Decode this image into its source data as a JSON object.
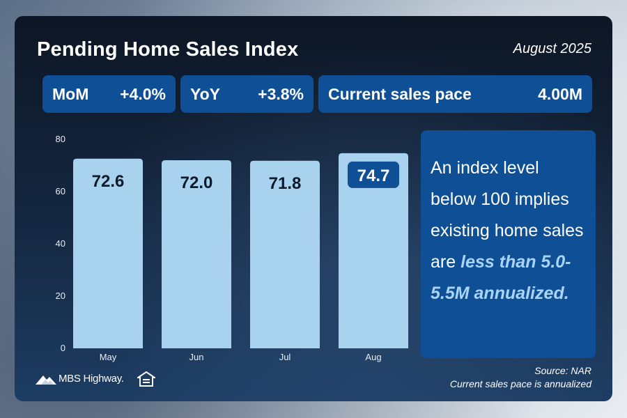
{
  "header": {
    "title": "Pending Home Sales Index",
    "date": "August 2025"
  },
  "stats": {
    "mom_label": "MoM",
    "mom_value": "+4.0%",
    "yoy_label": "YoY",
    "yoy_value": "+3.8%",
    "pace_label": "Current sales pace",
    "pace_value": "4.00M"
  },
  "chart_data": {
    "type": "bar",
    "categories": [
      "May",
      "Jun",
      "Jul",
      "Aug"
    ],
    "values": [
      72.6,
      72.0,
      71.8,
      74.7
    ],
    "value_labels": [
      "72.6",
      "72.0",
      "71.8",
      "74.7"
    ],
    "highlight_index": 3,
    "ylim": [
      0,
      80
    ],
    "yticks": [
      "0",
      "20",
      "40",
      "60",
      "80"
    ],
    "ytick_values": [
      0,
      20,
      40,
      60,
      80
    ],
    "grid": false,
    "bar_color": "#a9d2ee",
    "highlight_color": "#0f4f96"
  },
  "note": {
    "text_plain": "An index level below 100 implies existing home sales are ",
    "text_emphasis": "less than 5.0-5.5M annualized."
  },
  "footer": {
    "source": "Source: NAR",
    "footnote": "Current sales pace is annualized",
    "logo_text": "MBS Highway."
  },
  "colors": {
    "accent_blue": "#0f4f96",
    "bar_light_blue": "#a9d2ee",
    "emphasis_blue": "#a9d4f5"
  },
  "icons": {
    "logo": "mountain-logo-icon",
    "equal_housing": "equal-housing-opportunity-icon"
  }
}
